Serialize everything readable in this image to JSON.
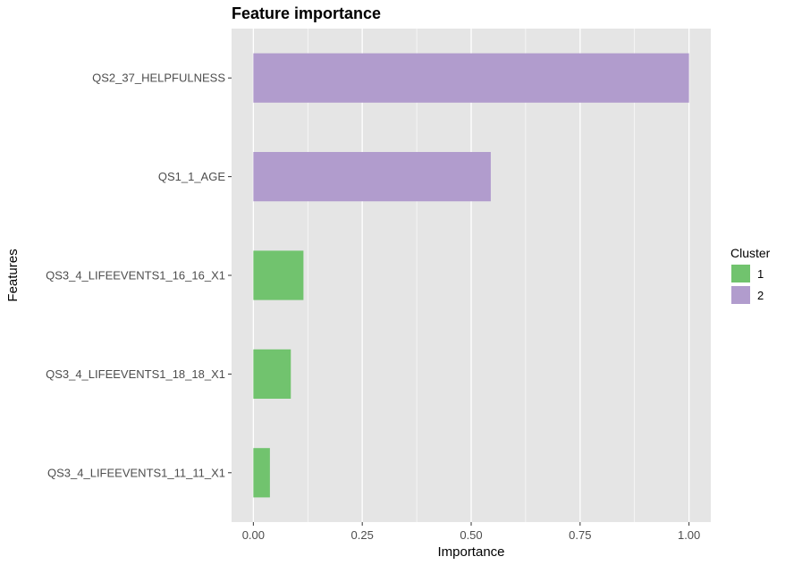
{
  "chart_data": {
    "type": "bar",
    "orientation": "horizontal",
    "title": "Feature importance",
    "xlabel": "Importance",
    "ylabel": "Features",
    "xlim": [
      -0.05,
      1.05
    ],
    "x_ticks": [
      0.0,
      0.25,
      0.5,
      0.75,
      1.0
    ],
    "x_tick_labels": [
      "0.00",
      "0.25",
      "0.50",
      "0.75",
      "1.00"
    ],
    "grid": true,
    "legend": {
      "title": "Cluster",
      "position": "right"
    },
    "categories": [
      "QS2_37_HELPFULNESS",
      "QS1_1_AGE",
      "QS3_4_LIFEEVENTS1_16_16_X1",
      "QS3_4_LIFEEVENTS1_18_18_X1",
      "QS3_4_LIFEEVENTS1_11_11_X1"
    ],
    "values": [
      1.0,
      0.545,
      0.115,
      0.086,
      0.038
    ],
    "cluster": [
      "2",
      "2",
      "1",
      "1",
      "1"
    ],
    "series": [
      {
        "name": "1",
        "color": "#71c36e"
      },
      {
        "name": "2",
        "color": "#b19ccd"
      }
    ],
    "panel_color": "#e5e5e5",
    "grid_color": "#ffffff"
  }
}
